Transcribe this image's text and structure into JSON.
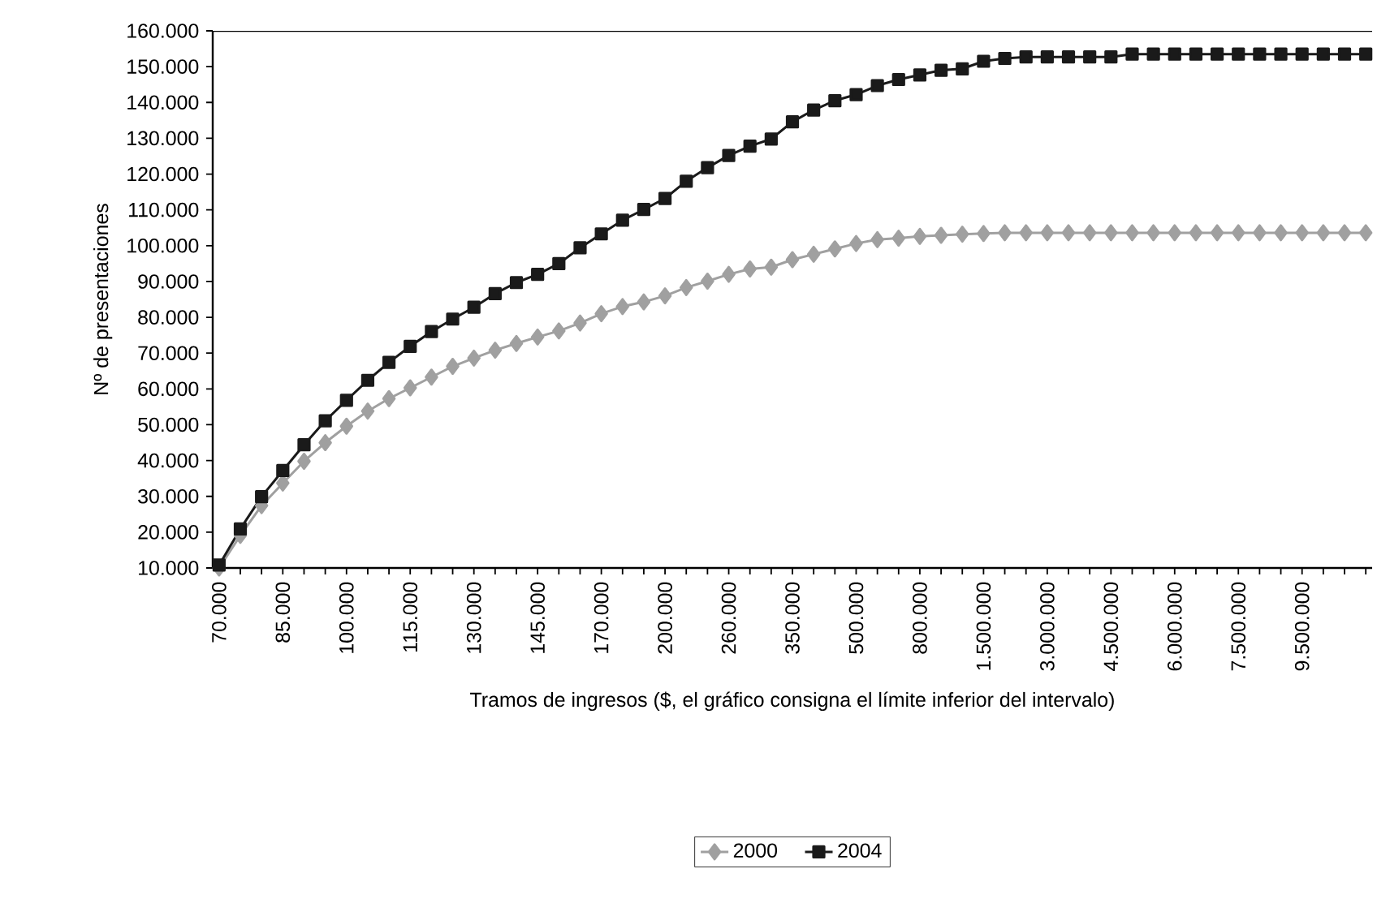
{
  "chart_data": {
    "type": "line",
    "xlabel": "Tramos de ingresos ($, el gráfico consigna el límite inferior del intervalo)",
    "ylabel": "Nº de presentaciones",
    "categories": [
      "70.000",
      null,
      null,
      "85.000",
      null,
      null,
      "100.000",
      null,
      null,
      "115.000",
      null,
      null,
      "130.000",
      null,
      null,
      "145.000",
      null,
      null,
      "170.000",
      null,
      null,
      "200.000",
      null,
      null,
      "260.000",
      null,
      null,
      "350.000",
      null,
      null,
      "500.000",
      null,
      null,
      "800.000",
      null,
      null,
      "1.500.000",
      null,
      null,
      "3.000.000",
      null,
      null,
      "4.500.000",
      null,
      null,
      "6.000.000",
      null,
      null,
      "7.500.000",
      null,
      null,
      "9.500.000",
      null,
      null,
      null
    ],
    "series": [
      {
        "name": "2000",
        "color": "#a0a0a0",
        "marker": "diamond",
        "values": [
          10000,
          19100,
          27400,
          33700,
          39800,
          45000,
          49600,
          53800,
          57300,
          60300,
          63300,
          66300,
          68600,
          70800,
          72700,
          74500,
          76200,
          78400,
          81000,
          83000,
          84300,
          86000,
          88300,
          90100,
          92000,
          93500,
          94000,
          96100,
          97600,
          99100,
          100600,
          101700,
          102100,
          102600,
          102900,
          103200,
          103400,
          103600,
          103600,
          103600,
          103600,
          103600,
          103600,
          103600,
          103600,
          103600,
          103600,
          103600,
          103600,
          103600,
          103600,
          103600,
          103600,
          103600,
          103600
        ]
      },
      {
        "name": "2004",
        "color": "#1a1a1a",
        "marker": "square",
        "values": [
          10800,
          20900,
          29900,
          37200,
          44400,
          51100,
          56800,
          62400,
          67400,
          71900,
          76000,
          79500,
          82800,
          86600,
          89700,
          92000,
          95000,
          99400,
          103300,
          107100,
          110100,
          113200,
          118000,
          121800,
          125200,
          127800,
          129800,
          134600,
          137900,
          140500,
          142200,
          144700,
          146400,
          147700,
          149000,
          149400,
          151500,
          152300,
          152700,
          152700,
          152700,
          152700,
          152700,
          153500,
          153500,
          153500,
          153500,
          153500,
          153500,
          153500,
          153500,
          153500,
          153500,
          153500,
          153500
        ]
      }
    ],
    "ylim": [
      10000,
      160000
    ],
    "yticks": [
      {
        "value": 10000,
        "label": "10.000"
      },
      {
        "value": 20000,
        "label": "20.000"
      },
      {
        "value": 30000,
        "label": "30.000"
      },
      {
        "value": 40000,
        "label": "40.000"
      },
      {
        "value": 50000,
        "label": "50.000"
      },
      {
        "value": 60000,
        "label": "60.000"
      },
      {
        "value": 70000,
        "label": "70.000"
      },
      {
        "value": 80000,
        "label": "80.000"
      },
      {
        "value": 90000,
        "label": "90.000"
      },
      {
        "value": 100000,
        "label": "100.000"
      },
      {
        "value": 110000,
        "label": "110.000"
      },
      {
        "value": 120000,
        "label": "120.000"
      },
      {
        "value": 130000,
        "label": "130.000"
      },
      {
        "value": 140000,
        "label": "140.000"
      },
      {
        "value": 150000,
        "label": "150.000"
      },
      {
        "value": 160000,
        "label": "160.000"
      }
    ],
    "grid": false,
    "legend": "bottom",
    "line_style": "solid"
  }
}
